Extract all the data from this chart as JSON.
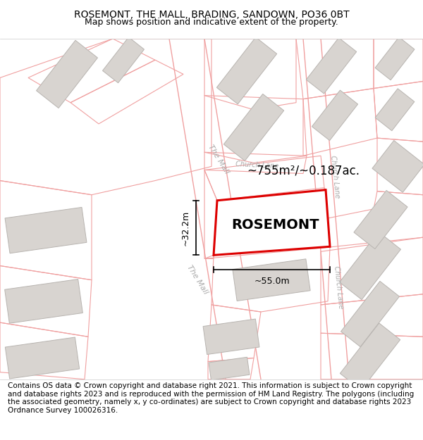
{
  "title_line1": "ROSEMONT, THE MALL, BRADING, SANDOWN, PO36 0BT",
  "title_line2": "Map shows position and indicative extent of the property.",
  "footer_text": "Contains OS data © Crown copyright and database right 2021. This information is subject to Crown copyright and database rights 2023 and is reproduced with the permission of HM Land Registry. The polygons (including the associated geometry, namely x, y co-ordinates) are subject to Crown copyright and database rights 2023 Ordnance Survey 100026316.",
  "property_name": "ROSEMONT",
  "area_text": "~755m²/~0.187ac.",
  "width_text": "~55.0m",
  "height_text": "~32.2m",
  "map_bg": "#ffffff",
  "title_bg": "#ffffff",
  "footer_bg": "#ffffff",
  "plot_line_color": "#f0a0a0",
  "building_fill": "#d8d4d0",
  "building_edge": "#b8b4b0",
  "property_edge": "#dd0000",
  "property_fill": "#ffffff",
  "street_label_color": "#aaaaaa",
  "title_fontsize": 10,
  "subtitle_fontsize": 9,
  "footer_fontsize": 7.5
}
